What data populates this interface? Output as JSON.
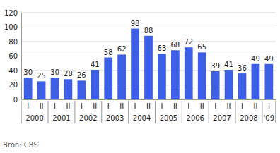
{
  "chart_data": {
    "type": "bar",
    "categories": [
      "I",
      "II",
      "I",
      "II",
      "I",
      "II",
      "I",
      "II",
      "I",
      "II",
      "I",
      "II",
      "I",
      "II",
      "I",
      "II",
      "I",
      "II",
      "I"
    ],
    "category_groups": [
      "2000",
      null,
      "2001",
      null,
      "2002",
      null,
      "2003",
      null,
      "2004",
      null,
      "2005",
      null,
      "2006",
      null,
      "2007",
      null,
      "2008",
      null,
      "'09"
    ],
    "values": [
      30,
      25,
      30,
      28,
      26,
      41,
      58,
      62,
      98,
      88,
      63,
      68,
      72,
      65,
      39,
      41,
      36,
      49,
      49
    ],
    "color": "#3d5fe6",
    "ylim": [
      0,
      120
    ],
    "yticks": [
      0,
      20,
      40,
      60,
      80,
      100,
      120
    ],
    "grid": true,
    "data_labels": true,
    "source": "Bron: CBS"
  }
}
